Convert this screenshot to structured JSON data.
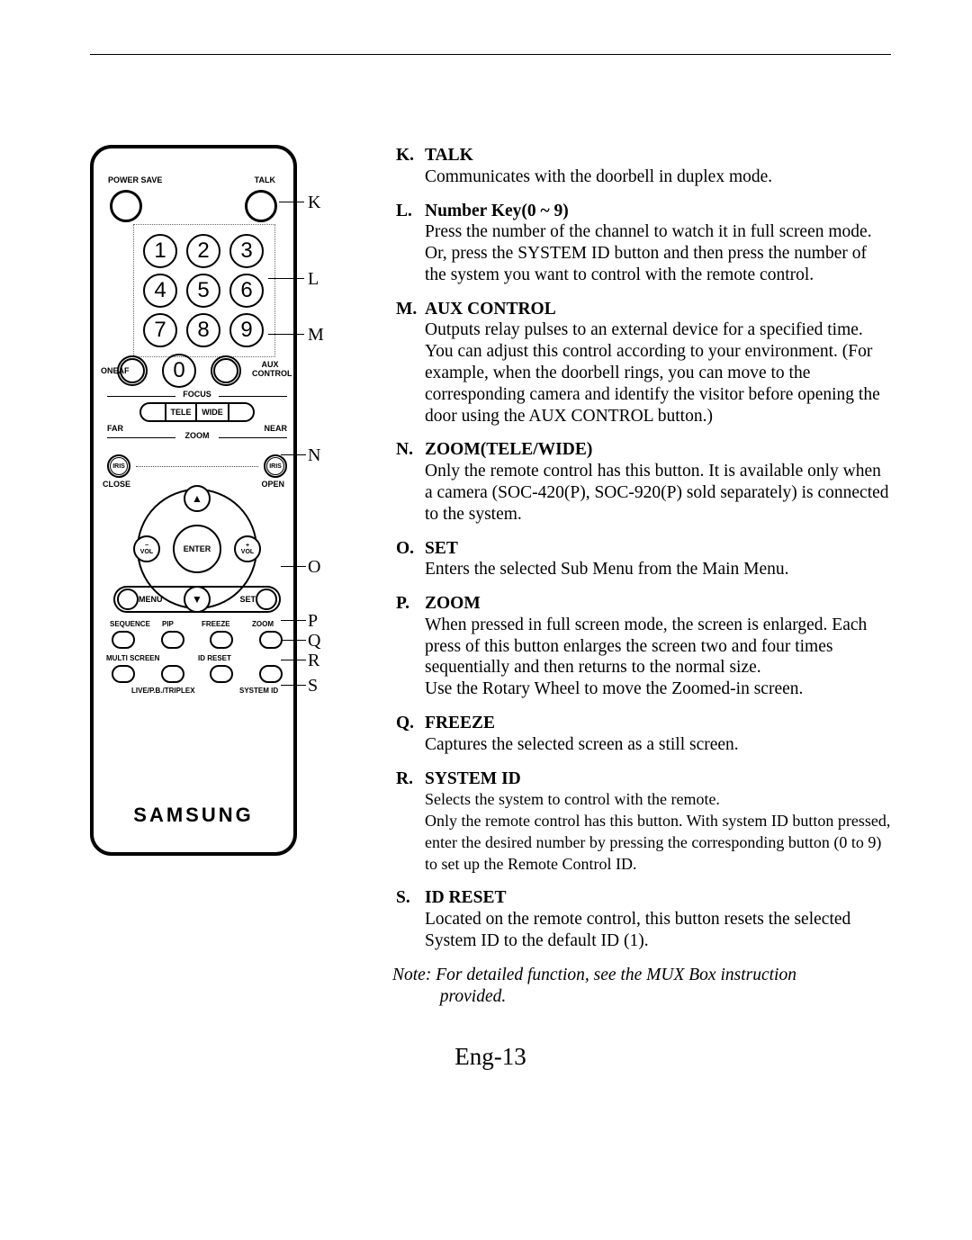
{
  "remote": {
    "power_save": "POWER SAVE",
    "talk": "TALK",
    "numbers": [
      "1",
      "2",
      "3",
      "4",
      "5",
      "6",
      "7",
      "8",
      "9"
    ],
    "zero": "0",
    "oneaf": "ONEAF",
    "aux": "AUX CONTROL",
    "focus": "FOCUS",
    "far": "FAR",
    "near": "NEAR",
    "tele": "TELE",
    "wide": "WIDE",
    "zoom_lbl": "ZOOM",
    "close": "CLOSE",
    "open": "OPEN",
    "enter": "ENTER",
    "vol_minus": "−\nVOL",
    "vol_plus": "+\nVOL",
    "menu": "MENU",
    "set": "SET",
    "sequence": "SEQUENCE",
    "pip": "PIP",
    "freeze": "FREEZE",
    "zoom_b": "ZOOM",
    "multi": "MULTI SCREEN",
    "id_reset": "ID RESET",
    "live": "LIVE/P.B./TRIPLEX",
    "system_id": "SYSTEM ID",
    "brand": "SAMSUNG"
  },
  "callouts": {
    "K": "K",
    "L": "L",
    "M": "M",
    "N": "N",
    "O": "O",
    "P": "P",
    "Q": "Q",
    "R": "R",
    "S": "S"
  },
  "items": [
    {
      "letter": "K.",
      "title": "TALK",
      "body": "Communicates with the doorbell in duplex mode."
    },
    {
      "letter": "L.",
      "title": "Number Key(0 ~ 9)",
      "body": "Press the number of the channel to watch it in full screen mode.\nOr, press the SYSTEM ID button and then press the number of the system you want to control with the remote control."
    },
    {
      "letter": "M.",
      "title": "AUX CONTROL",
      "body": "Outputs relay pulses to an external device for a specified time.\nYou can adjust this control according to your environment. (For example, when the doorbell rings, you can move to the corresponding camera and identify the visitor before opening the door using the AUX CONTROL button.)"
    },
    {
      "letter": "N.",
      "title": "ZOOM(TELE/WIDE)",
      "body": "Only the remote control has this button. It is available only when a camera (SOC-420(P), SOC-920(P) sold separately) is connected  to the  system."
    },
    {
      "letter": "O.",
      "title": "SET",
      "body": "Enters the selected Sub Menu from the Main Menu."
    },
    {
      "letter": "P.",
      "title": "ZOOM",
      "body": "When pressed in full screen mode, the screen is enlarged. Each press of this button enlarges the screen two and four times sequentially and then returns to the normal size.\nUse the Rotary Wheel to move the Zoomed-in screen."
    },
    {
      "letter": "Q.",
      "title": "FREEZE",
      "body": "Captures the selected screen as a still screen."
    },
    {
      "letter": "R.",
      "title": "SYSTEM ID",
      "body": "Selects the system to control with the remote.\nOnly the remote control has this button. With system ID button pressed, enter the desired number by pressing the corresponding button (0 to 9) to set up the Remote Control ID."
    },
    {
      "letter": "S.",
      "title": "ID RESET",
      "body": "Located on the remote control, this button resets the selected System ID to the default ID (1)."
    }
  ],
  "note": "Note: For detailed function, see the MUX Box instruction provided.",
  "page_num": "Eng-13"
}
